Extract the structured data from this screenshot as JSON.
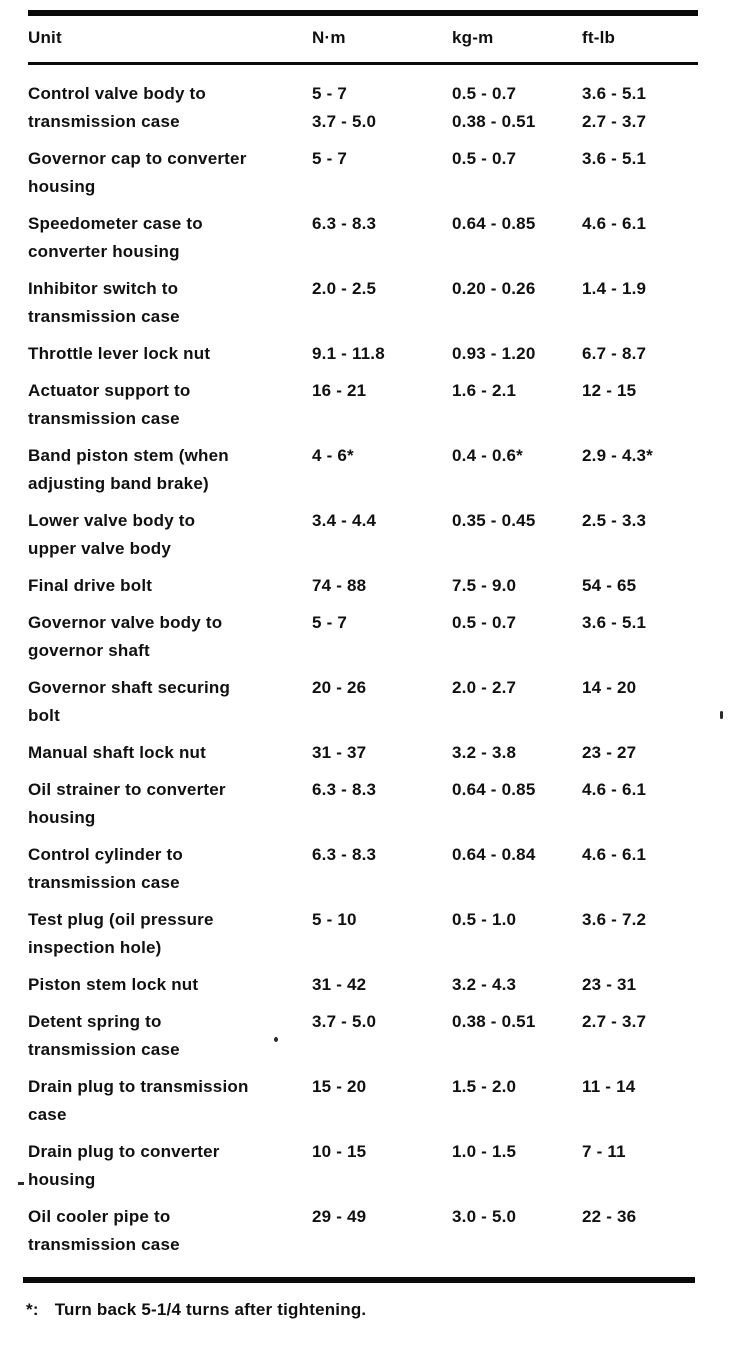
{
  "table": {
    "columns": [
      "Unit",
      "N·m",
      "kg-m",
      "ft-lb"
    ],
    "rows": [
      {
        "unit": "Control valve body to\ntransmission case",
        "nm": "5 - 7\n3.7 - 5.0",
        "kgm": "0.5 - 0.7\n0.38 - 0.51",
        "ftlb": "3.6 - 5.1\n2.7 - 3.7"
      },
      {
        "unit": "Governor cap to converter\nhousing",
        "nm": "5 - 7",
        "kgm": "0.5 - 0.7",
        "ftlb": "3.6 - 5.1"
      },
      {
        "unit": "Speedometer case to\nconverter housing",
        "nm": "6.3 - 8.3",
        "kgm": "0.64 - 0.85",
        "ftlb": "4.6 - 6.1"
      },
      {
        "unit": "Inhibitor switch to\ntransmission case",
        "nm": "2.0 - 2.5",
        "kgm": "0.20 - 0.26",
        "ftlb": "1.4 - 1.9"
      },
      {
        "unit": "Throttle lever lock nut",
        "nm": "9.1 - 11.8",
        "kgm": "0.93 - 1.20",
        "ftlb": "6.7 - 8.7"
      },
      {
        "unit": "Actuator support to\ntransmission case",
        "nm": "16 - 21",
        "kgm": "1.6 - 2.1",
        "ftlb": "12 - 15"
      },
      {
        "unit": "Band piston stem (when\nadjusting band brake)",
        "nm": "4 - 6*",
        "kgm": "0.4 - 0.6*",
        "ftlb": "2.9 - 4.3*"
      },
      {
        "unit": "Lower valve body to\nupper valve body",
        "nm": "3.4 - 4.4",
        "kgm": "0.35 - 0.45",
        "ftlb": "2.5 - 3.3"
      },
      {
        "unit": "Final drive bolt",
        "nm": "74 - 88",
        "kgm": "7.5 - 9.0",
        "ftlb": "54 - 65"
      },
      {
        "unit": "Governor valve body to\ngovernor shaft",
        "nm": "5 - 7",
        "kgm": "0.5 - 0.7",
        "ftlb": "3.6 - 5.1"
      },
      {
        "unit": "Governor shaft securing\nbolt",
        "nm": "20 - 26",
        "kgm": "2.0 - 2.7",
        "ftlb": "14 - 20"
      },
      {
        "unit": "Manual shaft lock nut",
        "nm": "31 - 37",
        "kgm": "3.2 - 3.8",
        "ftlb": "23 - 27"
      },
      {
        "unit": "Oil strainer to converter\nhousing",
        "nm": "6.3 - 8.3",
        "kgm": "0.64 - 0.85",
        "ftlb": "4.6 - 6.1"
      },
      {
        "unit": "Control cylinder to\ntransmission case",
        "nm": "6.3 - 8.3",
        "kgm": "0.64 - 0.84",
        "ftlb": "4.6 - 6.1"
      },
      {
        "unit": "Test plug (oil pressure\ninspection hole)",
        "nm": "5 - 10",
        "kgm": "0.5 - 1.0",
        "ftlb": "3.6 - 7.2"
      },
      {
        "unit": "Piston stem lock nut",
        "nm": "31 - 42",
        "kgm": "3.2 - 4.3",
        "ftlb": "23 - 31"
      },
      {
        "unit": "Detent spring to\ntransmission case",
        "nm": "3.7 - 5.0",
        "kgm": "0.38 - 0.51",
        "ftlb": "2.7 - 3.7"
      },
      {
        "unit": "Drain plug to transmission\ncase",
        "nm": "15 - 20",
        "kgm": "1.5 - 2.0",
        "ftlb": "11 - 14"
      },
      {
        "unit": "Drain plug to converter\nhousing",
        "nm": "10 - 15",
        "kgm": "1.0 - 1.5",
        "ftlb": "7 - 11"
      },
      {
        "unit": "Oil cooler pipe to\ntransmission case",
        "nm": "29 - 49",
        "kgm": "3.0 - 5.0",
        "ftlb": "22 - 36"
      }
    ]
  },
  "footnote": {
    "marker": "*:",
    "text": "Turn back 5-1/4 turns after tightening."
  },
  "colors": {
    "ink": "#101010",
    "paper": "#ffffff"
  }
}
